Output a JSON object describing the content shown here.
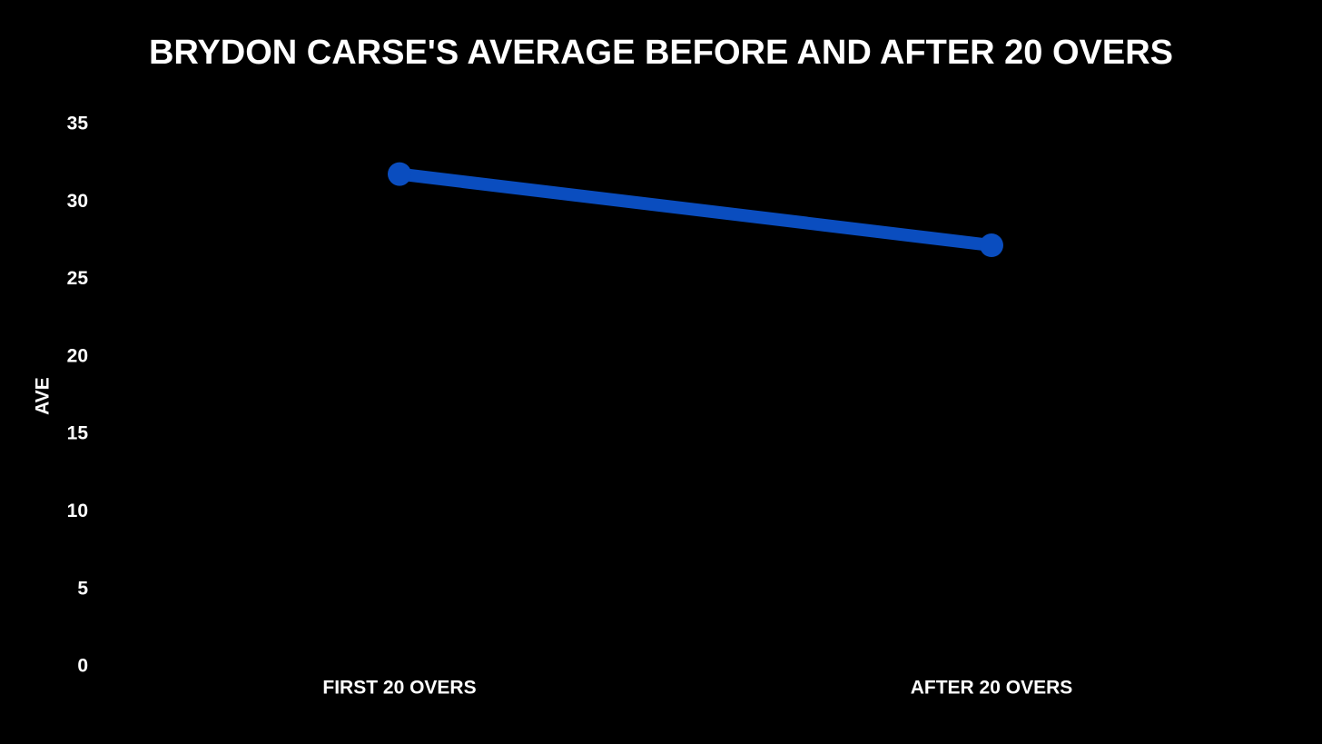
{
  "chart_data": {
    "type": "line",
    "title": "BRYDON CARSE'S AVERAGE BEFORE AND AFTER 20 OVERS",
    "y_label": "AVE",
    "categories": [
      "FIRST 20 OVERS",
      "AFTER 20 OVERS"
    ],
    "values": [
      31.8,
      27.2
    ],
    "color": "#0a4dbf",
    "ylim": [
      0,
      35
    ],
    "yticks": [
      0,
      5,
      10,
      15,
      20,
      25,
      30,
      35
    ],
    "grid": false
  }
}
